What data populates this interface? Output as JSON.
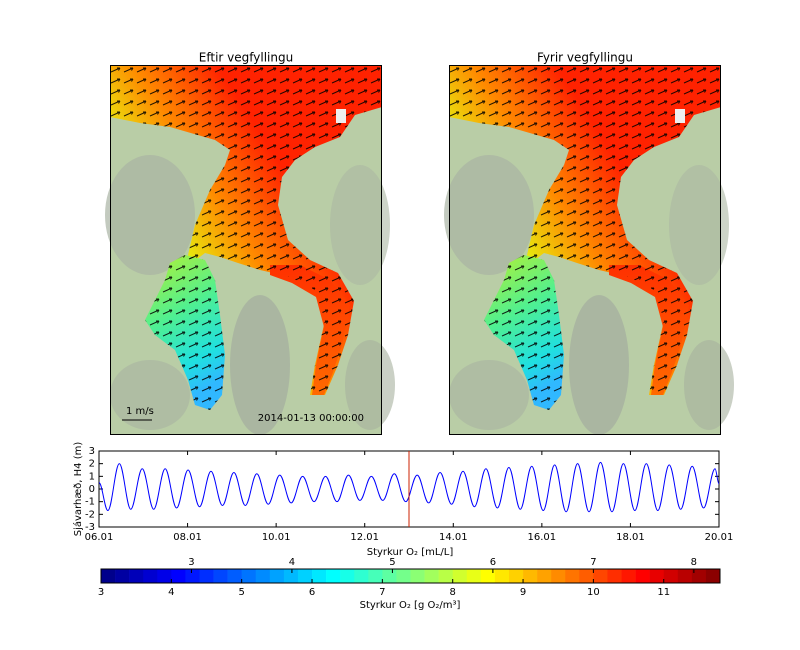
{
  "chart_data": [
    {
      "type": "map",
      "title": "Eftir vegfyllingu",
      "scale_label": "1 m/s",
      "timestamp": "2014-01-13 00:00:00"
    },
    {
      "type": "map",
      "title": "Fyrir vegfyllingu"
    },
    {
      "type": "line",
      "ylabel": "Sjávarhæð, H4 (m)",
      "x": [
        6.0,
        6.2,
        6.459,
        6.717,
        6.976,
        7.235,
        7.494,
        7.752,
        8.011,
        8.27,
        8.528,
        8.787,
        9.046,
        9.304,
        9.563,
        9.822,
        10.081,
        10.339,
        10.598,
        10.857,
        11.115,
        11.374,
        11.633,
        11.891,
        12.15,
        12.409,
        12.668,
        12.926,
        13.185,
        13.444,
        13.702,
        13.961,
        14.22,
        14.478,
        14.737,
        14.996,
        15.255,
        15.513,
        15.772,
        16.031,
        16.289,
        16.548,
        16.807,
        17.065,
        17.324,
        17.583,
        17.842,
        18.1,
        18.359,
        18.618,
        18.876,
        19.135,
        19.394,
        19.652,
        19.911,
        20.0
      ],
      "series": [
        {
          "color": "#0000ff",
          "values": [
            0.5,
            -1.7,
            2.0,
            -1.6,
            1.6,
            -1.6,
            1.6,
            -1.5,
            1.5,
            -1.4,
            1.4,
            -1.3,
            1.3,
            -1.3,
            1.2,
            -1.2,
            1.1,
            -1.1,
            1.0,
            -1.0,
            1.0,
            -1.0,
            1.1,
            -0.9,
            1.0,
            -0.9,
            1.2,
            -1.0,
            1.1,
            -1.1,
            1.3,
            -1.2,
            1.4,
            -1.4,
            1.6,
            -1.5,
            1.7,
            -1.6,
            1.8,
            -1.7,
            1.9,
            -1.8,
            2.0,
            -1.8,
            2.1,
            -1.8,
            2.0,
            -1.7,
            2.0,
            -1.7,
            1.9,
            -1.6,
            1.8,
            -1.5,
            1.6,
            0.4
          ]
        }
      ],
      "xlim": [
        6,
        20
      ],
      "ylim": [
        -3,
        3
      ],
      "xticks": [
        {
          "value": 6,
          "label": "06.01"
        },
        {
          "value": 8,
          "label": "08.01"
        },
        {
          "value": 10,
          "label": "10.01"
        },
        {
          "value": 12,
          "label": "12.01"
        },
        {
          "value": 14,
          "label": "14.01"
        },
        {
          "value": 16,
          "label": "16.01"
        },
        {
          "value": 18,
          "label": "18.01"
        },
        {
          "value": 20,
          "label": "20.01"
        }
      ],
      "yticks": [
        -3,
        -2,
        -1,
        0,
        1,
        2,
        3
      ],
      "marker_x": 13,
      "marker_color": "#cc2200"
    },
    {
      "type": "colorbar",
      "colormap": "jet",
      "levels": 44,
      "xlim": [
        3,
        11.8
      ],
      "xticks": [
        3,
        4,
        5,
        6,
        7,
        8,
        9,
        10,
        11
      ],
      "xlabel": "Styrkur O₂ [g O₂/m³]",
      "x2lim": [
        2.1,
        8.26
      ],
      "x2ticks": [
        3,
        4,
        5,
        6,
        7,
        8
      ],
      "x2label": "Styrkur O₂ [mL/L]"
    }
  ]
}
